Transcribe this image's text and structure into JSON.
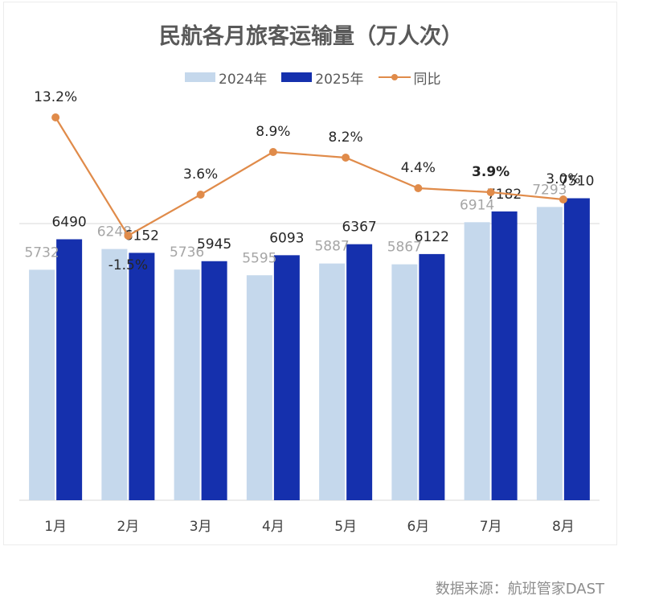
{
  "colors": {
    "series_2024": "#c5d8ec",
    "series_2025": "#1530ad",
    "yoy_line": "#e08b4a",
    "label_2024": "#a6a6a6",
    "label_2025": "#262626",
    "axis": "#d9d9d9",
    "tick_text": "#404040"
  },
  "chart_data": {
    "type": "bar",
    "title": "民航各月旅客运输量（万人次）",
    "categories": [
      "1月",
      "2月",
      "3月",
      "4月",
      "5月",
      "6月",
      "7月",
      "8月"
    ],
    "series": [
      {
        "name": "2024年",
        "type": "bar",
        "values": [
          5732,
          6248,
          5736,
          5595,
          5887,
          5867,
          6914,
          7293
        ]
      },
      {
        "name": "2025年",
        "type": "bar",
        "values": [
          6490,
          6152,
          5945,
          6093,
          6367,
          6122,
          7182,
          7510
        ]
      },
      {
        "name": "同比",
        "type": "line",
        "values": [
          13.2,
          -1.5,
          3.6,
          8.9,
          8.2,
          4.4,
          3.9,
          3.0
        ],
        "labels": [
          "13.2%",
          "-1.5%",
          "3.6%",
          "8.9%",
          "8.2%",
          "4.4%",
          "3.9%",
          "3.0%"
        ]
      }
    ],
    "bar_axis_range": [
      0,
      8000
    ],
    "line_axis_range": [
      -3,
      21
    ],
    "grid": false,
    "legend_position": "top"
  },
  "footer": {
    "source": "数据来源：航班管家DAST"
  }
}
